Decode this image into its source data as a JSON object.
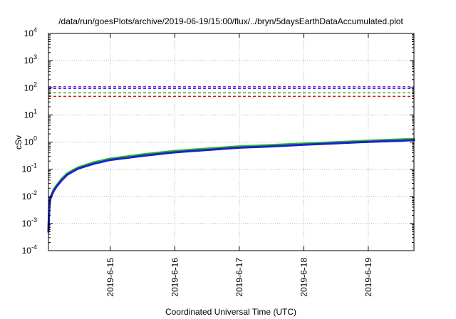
{
  "chart_data": {
    "type": "line",
    "title": "/data/run/goesPlots/archive/2019-06-19/15:00/flux/../bryn/5daysEarthDataAccumulated.plot",
    "xlabel": "Coordinated Universal Time (UTC)",
    "ylabel": "cSv",
    "y_scale": "log",
    "ylim": [
      0.0001,
      10000
    ],
    "y_ticks": [
      {
        "value": 0.0001,
        "base": "10",
        "exp": "-4"
      },
      {
        "value": 0.001,
        "base": "10",
        "exp": "-3"
      },
      {
        "value": 0.01,
        "base": "10",
        "exp": "-2"
      },
      {
        "value": 0.1,
        "base": "10",
        "exp": "-1"
      },
      {
        "value": 1,
        "base": "10",
        "exp": "0"
      },
      {
        "value": 10,
        "base": "10",
        "exp": "1"
      },
      {
        "value": 100,
        "base": "10",
        "exp": "2"
      },
      {
        "value": 1000,
        "base": "10",
        "exp": "3"
      },
      {
        "value": 10000,
        "base": "10",
        "exp": "4"
      }
    ],
    "x_start": "2019-06-14 01:00",
    "x_end": "2019-06-19 17:00",
    "x_ticks": [
      "2019-6-15",
      "2019-6-16",
      "2019-6-17",
      "2019-6-18",
      "2019-6-19"
    ],
    "x_tick_times": [
      "2019-06-15 00:00",
      "2019-06-16 00:00",
      "2019-06-17 00:00",
      "2019-06-18 00:00",
      "2019-06-19 00:00"
    ],
    "grid": true,
    "reference_lines": [
      {
        "value": 110,
        "color": "#8a2be2",
        "style": "dashed"
      },
      {
        "value": 95,
        "color": "#1f1fd0",
        "style": "dashed"
      },
      {
        "value": 65,
        "color": "#22bb22",
        "style": "dashed"
      },
      {
        "value": 48,
        "color": "#dd1111",
        "style": "dashed"
      }
    ],
    "series": [
      {
        "color": "#22bb22",
        "x": [
          "2019-06-14 01:00",
          "2019-06-14 01:12",
          "2019-06-14 01:24",
          "2019-06-14 01:36",
          "2019-06-14 02:00",
          "2019-06-14 03:00",
          "2019-06-14 04:00",
          "2019-06-14 06:00",
          "2019-06-14 08:00",
          "2019-06-14 12:00",
          "2019-06-14 18:00",
          "2019-06-15 00:00",
          "2019-06-15 12:00",
          "2019-06-16 00:00",
          "2019-06-16 12:00",
          "2019-06-17 00:00",
          "2019-06-17 12:00",
          "2019-06-18 00:00",
          "2019-06-18 12:00",
          "2019-06-19 00:00",
          "2019-06-19 12:00",
          "2019-06-19 17:00"
        ],
        "values": [
          0.0006,
          0.0025,
          0.005,
          0.008,
          0.011,
          0.018,
          0.025,
          0.045,
          0.07,
          0.115,
          0.18,
          0.245,
          0.35,
          0.47,
          0.57,
          0.69,
          0.77,
          0.88,
          0.99,
          1.12,
          1.24,
          1.3
        ]
      },
      {
        "color": "#1f1fd0",
        "x": [
          "2019-06-14 01:00",
          "2019-06-14 01:12",
          "2019-06-14 01:24",
          "2019-06-14 01:36",
          "2019-06-14 02:00",
          "2019-06-14 03:00",
          "2019-06-14 04:00",
          "2019-06-14 06:00",
          "2019-06-14 08:00",
          "2019-06-14 12:00",
          "2019-06-14 18:00",
          "2019-06-15 00:00",
          "2019-06-15 12:00",
          "2019-06-16 00:00",
          "2019-06-16 12:00",
          "2019-06-17 00:00",
          "2019-06-17 12:00",
          "2019-06-18 00:00",
          "2019-06-18 12:00",
          "2019-06-19 00:00",
          "2019-06-19 12:00",
          "2019-06-19 17:00"
        ],
        "values": [
          0.0005,
          0.0022,
          0.0045,
          0.0075,
          0.01,
          0.016,
          0.023,
          0.04,
          0.063,
          0.105,
          0.16,
          0.22,
          0.31,
          0.42,
          0.51,
          0.62,
          0.69,
          0.8,
          0.9,
          1.02,
          1.12,
          1.18
        ]
      }
    ]
  }
}
